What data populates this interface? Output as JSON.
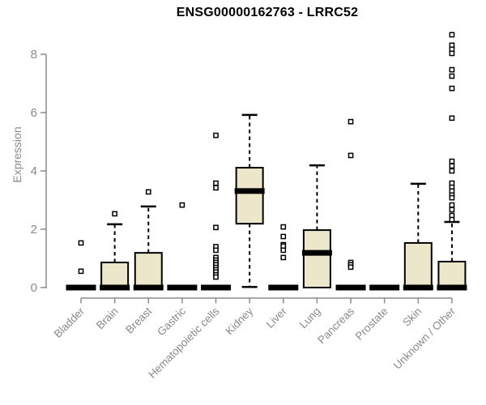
{
  "chart_data": {
    "type": "box",
    "title": "ENSG00000162763 - LRRC52",
    "ylabel": "Expression",
    "xlabel": "",
    "ylim": [
      0,
      8.7
    ],
    "yticks": [
      0,
      2,
      4,
      6,
      8
    ],
    "grid": false,
    "legend": null,
    "colors": {
      "box_fill": "#ece7ca",
      "box_stroke": "#000000",
      "median": "#000000",
      "whisker": "#000000",
      "outlier_stroke": "#000000",
      "outlier_fill": "#ffffff",
      "axis": "#8a8a8a",
      "tick_label": "#8a8a8a",
      "category_label": "#8a8a8a",
      "title": "#000000",
      "background": "#ffffff"
    },
    "categories": [
      "Bladder",
      "Brain",
      "Breast",
      "Gastric",
      "Hematopoietic cells",
      "Kidney",
      "Liver",
      "Lung",
      "Pancreas",
      "Prostate",
      "Skin",
      "Unknown / Other"
    ],
    "boxes": [
      {
        "label": "Bladder",
        "q1": 0,
        "median": 0,
        "q3": 0,
        "whisker_low": 0,
        "whisker_high": 0,
        "outliers": [
          1.53,
          0.56
        ]
      },
      {
        "label": "Brain",
        "q1": 0,
        "median": 0,
        "q3": 0.86,
        "whisker_low": 0,
        "whisker_high": 2.17,
        "outliers": [
          2.53
        ]
      },
      {
        "label": "Breast",
        "q1": 0,
        "median": 0,
        "q3": 1.19,
        "whisker_low": 0,
        "whisker_high": 2.78,
        "outliers": [
          3.28
        ]
      },
      {
        "label": "Gastric",
        "q1": 0,
        "median": 0,
        "q3": 0,
        "whisker_low": 0,
        "whisker_high": 0,
        "outliers": [
          2.83
        ]
      },
      {
        "label": "Hematopoietic cells",
        "q1": 0,
        "median": 0,
        "q3": 0,
        "whisker_low": 0,
        "whisker_high": 0,
        "outliers": [
          5.22,
          3.58,
          3.42,
          2.06,
          1.4,
          1.28,
          1.03,
          0.94,
          0.86,
          0.78,
          0.69,
          0.61,
          0.53,
          0.44,
          0.36
        ]
      },
      {
        "label": "Kidney",
        "q1": 2.19,
        "median": 3.31,
        "q3": 4.11,
        "whisker_low": 0.02,
        "whisker_high": 5.92,
        "outliers": []
      },
      {
        "label": "Liver",
        "q1": 0,
        "median": 0,
        "q3": 0,
        "whisker_low": 0,
        "whisker_high": 0,
        "outliers": [
          2.08,
          1.75,
          1.47,
          1.42,
          1.28,
          1.03
        ]
      },
      {
        "label": "Lung",
        "q1": 0,
        "median": 1.19,
        "q3": 1.97,
        "whisker_low": 0,
        "whisker_high": 4.19,
        "outliers": []
      },
      {
        "label": "Pancreas",
        "q1": 0,
        "median": 0,
        "q3": 0,
        "whisker_low": 0,
        "whisker_high": 0,
        "outliers": [
          5.69,
          4.53,
          0.86,
          0.78,
          0.7
        ]
      },
      {
        "label": "Prostate",
        "q1": 0,
        "median": 0,
        "q3": 0,
        "whisker_low": 0,
        "whisker_high": 0,
        "outliers": []
      },
      {
        "label": "Skin",
        "q1": 0,
        "median": 0,
        "q3": 1.53,
        "whisker_low": 0,
        "whisker_high": 3.56,
        "outliers": []
      },
      {
        "label": "Unknown / Other",
        "q1": 0,
        "median": 0,
        "q3": 0.89,
        "whisker_low": 0,
        "whisker_high": 2.25,
        "outliers": [
          8.67,
          8.31,
          8.17,
          8.03,
          7.47,
          7.25,
          6.83,
          5.81,
          4.33,
          4.17,
          4.0,
          3.58,
          3.44,
          3.31,
          3.17,
          3.08,
          2.83,
          2.67,
          2.47,
          2.33
        ]
      }
    ]
  }
}
